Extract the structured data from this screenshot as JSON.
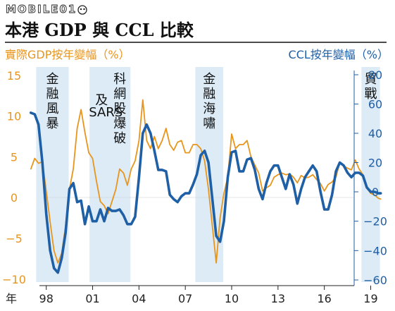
{
  "watermark": "MOBILE01",
  "chart_data": {
    "type": "line",
    "title": "本港 GDP 與 CCL 比較",
    "ylabel_left": "實際GDP按年變幅（%）",
    "ylabel_right": "CCL按年變幅（%）",
    "x_axis_label": "年",
    "x_ticks": [
      "98",
      "01",
      "04",
      "07",
      "10",
      "13",
      "16",
      "19"
    ],
    "x_tick_values": [
      1998,
      2001,
      2004,
      2007,
      2010,
      2013,
      2016,
      2019
    ],
    "xlim": [
      1996.6,
      2020.3
    ],
    "ylim_left": [
      -10,
      15
    ],
    "yticks_left": [
      "15",
      "10",
      "5",
      "0",
      "−5",
      "−10"
    ],
    "ytick_values_left": [
      15,
      10,
      5,
      0,
      -5,
      -10
    ],
    "ylim_right": [
      -60,
      80
    ],
    "yticks_right": [
      "80",
      "60",
      "40",
      "20",
      "0",
      "−20",
      "−40",
      "−60"
    ],
    "ytick_values_right": [
      80,
      60,
      40,
      20,
      0,
      -20,
      -40,
      -60
    ],
    "bands": [
      {
        "label": "金融風暴",
        "start": 1997.35,
        "end": 1999.45
      },
      {
        "label": "科網股爆破及SARS",
        "start": 2000.8,
        "end": 2003.45
      },
      {
        "label": "金融海嘯",
        "start": 2007.65,
        "end": 2009.45
      },
      {
        "label": "貿戰",
        "start": 2018.4,
        "end": 2019.6
      }
    ],
    "colors": {
      "gdp": "#E8951C",
      "ccl": "#1F5FA5",
      "band": "#DCEBF6"
    },
    "series": [
      {
        "key": "gdp",
        "axis": "left",
        "points": [
          [
            1997.0,
            3.5
          ],
          [
            1997.25,
            4.8
          ],
          [
            1997.5,
            4.2
          ],
          [
            1997.75,
            4.4
          ],
          [
            1998.0,
            0.8
          ],
          [
            1998.25,
            -3.0
          ],
          [
            1998.5,
            -6.5
          ],
          [
            1998.75,
            -8.0
          ],
          [
            1999.0,
            -6.8
          ],
          [
            1999.25,
            -3.5
          ],
          [
            1999.5,
            1.0
          ],
          [
            1999.75,
            3.5
          ],
          [
            2000.0,
            8.5
          ],
          [
            2000.25,
            10.8
          ],
          [
            2000.5,
            8.0
          ],
          [
            2000.75,
            5.5
          ],
          [
            2001.0,
            4.8
          ],
          [
            2001.25,
            2.0
          ],
          [
            2001.5,
            -0.5
          ],
          [
            2001.75,
            -1.0
          ],
          [
            2002.0,
            -2.0
          ],
          [
            2002.25,
            -0.5
          ],
          [
            2002.5,
            1.0
          ],
          [
            2002.75,
            3.5
          ],
          [
            2003.0,
            3.0
          ],
          [
            2003.25,
            1.5
          ],
          [
            2003.5,
            3.5
          ],
          [
            2003.75,
            4.5
          ],
          [
            2004.0,
            7.0
          ],
          [
            2004.25,
            12.0
          ],
          [
            2004.5,
            7.0
          ],
          [
            2004.75,
            6.0
          ],
          [
            2005.0,
            7.5
          ],
          [
            2005.25,
            6.0
          ],
          [
            2005.5,
            7.0
          ],
          [
            2005.75,
            8.5
          ],
          [
            2006.0,
            6.5
          ],
          [
            2006.25,
            5.8
          ],
          [
            2006.5,
            6.8
          ],
          [
            2006.75,
            7.0
          ],
          [
            2007.0,
            5.5
          ],
          [
            2007.25,
            5.5
          ],
          [
            2007.5,
            6.5
          ],
          [
            2007.75,
            6.5
          ],
          [
            2008.0,
            6.0
          ],
          [
            2008.25,
            4.5
          ],
          [
            2008.5,
            1.0
          ],
          [
            2008.75,
            -3.5
          ],
          [
            2009.0,
            -8.0
          ],
          [
            2009.25,
            -2.5
          ],
          [
            2009.5,
            0.5
          ],
          [
            2009.75,
            2.5
          ],
          [
            2010.0,
            7.8
          ],
          [
            2010.25,
            6.0
          ],
          [
            2010.5,
            6.5
          ],
          [
            2010.75,
            6.5
          ],
          [
            2011.0,
            7.0
          ],
          [
            2011.25,
            5.0
          ],
          [
            2011.5,
            4.0
          ],
          [
            2011.75,
            3.0
          ],
          [
            2012.0,
            0.8
          ],
          [
            2012.25,
            1.2
          ],
          [
            2012.5,
            1.5
          ],
          [
            2012.75,
            2.5
          ],
          [
            2013.0,
            2.8
          ],
          [
            2013.25,
            3.0
          ],
          [
            2013.5,
            2.8
          ],
          [
            2013.75,
            2.9
          ],
          [
            2014.0,
            2.5
          ],
          [
            2014.25,
            1.8
          ],
          [
            2014.5,
            2.7
          ],
          [
            2014.75,
            2.4
          ],
          [
            2015.0,
            2.5
          ],
          [
            2015.25,
            2.8
          ],
          [
            2015.5,
            2.2
          ],
          [
            2015.75,
            1.7
          ],
          [
            2016.0,
            0.8
          ],
          [
            2016.25,
            1.6
          ],
          [
            2016.5,
            1.9
          ],
          [
            2016.75,
            2.5
          ],
          [
            2017.0,
            4.3
          ],
          [
            2017.25,
            3.9
          ],
          [
            2017.5,
            3.6
          ],
          [
            2017.75,
            3.4
          ],
          [
            2018.0,
            4.6
          ],
          [
            2018.25,
            3.5
          ],
          [
            2018.5,
            2.8
          ],
          [
            2018.75,
            1.2
          ],
          [
            2019.0,
            0.5
          ],
          [
            2019.25,
            0.3
          ],
          [
            2019.5,
            -0.1
          ],
          [
            2019.65,
            -0.2
          ]
        ]
      },
      {
        "key": "ccl",
        "axis": "right",
        "points": [
          [
            1997.0,
            54
          ],
          [
            1997.25,
            53
          ],
          [
            1997.5,
            46
          ],
          [
            1997.75,
            20
          ],
          [
            1998.0,
            -15
          ],
          [
            1998.25,
            -40
          ],
          [
            1998.5,
            -52
          ],
          [
            1998.75,
            -55
          ],
          [
            1999.0,
            -45
          ],
          [
            1999.25,
            -28
          ],
          [
            1999.5,
            2
          ],
          [
            1999.75,
            6
          ],
          [
            2000.0,
            -7
          ],
          [
            2000.25,
            -6
          ],
          [
            2000.5,
            -22
          ],
          [
            2000.75,
            -10
          ],
          [
            2001.0,
            -20
          ],
          [
            2001.25,
            -20
          ],
          [
            2001.5,
            -12
          ],
          [
            2001.75,
            -20
          ],
          [
            2002.0,
            -11
          ],
          [
            2002.25,
            -13
          ],
          [
            2002.5,
            -13
          ],
          [
            2002.75,
            -12
          ],
          [
            2003.0,
            -16
          ],
          [
            2003.25,
            -22
          ],
          [
            2003.5,
            -22
          ],
          [
            2003.75,
            -17
          ],
          [
            2004.0,
            10
          ],
          [
            2004.25,
            40
          ],
          [
            2004.5,
            46
          ],
          [
            2004.75,
            40
          ],
          [
            2005.0,
            28
          ],
          [
            2005.25,
            15
          ],
          [
            2005.5,
            15
          ],
          [
            2005.75,
            14
          ],
          [
            2006.0,
            -2
          ],
          [
            2006.25,
            -5
          ],
          [
            2006.5,
            -7
          ],
          [
            2006.75,
            -3
          ],
          [
            2007.0,
            -1
          ],
          [
            2007.25,
            -1
          ],
          [
            2007.5,
            5
          ],
          [
            2007.75,
            12
          ],
          [
            2008.0,
            25
          ],
          [
            2008.25,
            28
          ],
          [
            2008.5,
            20
          ],
          [
            2008.75,
            -5
          ],
          [
            2009.0,
            -30
          ],
          [
            2009.25,
            -34
          ],
          [
            2009.5,
            -20
          ],
          [
            2009.75,
            10
          ],
          [
            2010.0,
            27
          ],
          [
            2010.25,
            28
          ],
          [
            2010.5,
            14
          ],
          [
            2010.75,
            14
          ],
          [
            2011.0,
            22
          ],
          [
            2011.25,
            23
          ],
          [
            2011.5,
            15
          ],
          [
            2011.75,
            2
          ],
          [
            2012.0,
            -5
          ],
          [
            2012.25,
            6
          ],
          [
            2012.5,
            14
          ],
          [
            2012.75,
            18
          ],
          [
            2013.0,
            18
          ],
          [
            2013.25,
            10
          ],
          [
            2013.5,
            2
          ],
          [
            2013.75,
            12
          ],
          [
            2014.0,
            5
          ],
          [
            2014.25,
            -8
          ],
          [
            2014.5,
            2
          ],
          [
            2014.75,
            10
          ],
          [
            2015.0,
            14
          ],
          [
            2015.25,
            18
          ],
          [
            2015.5,
            14
          ],
          [
            2015.75,
            0
          ],
          [
            2016.0,
            -12
          ],
          [
            2016.25,
            -12
          ],
          [
            2016.5,
            -2
          ],
          [
            2016.75,
            14
          ],
          [
            2017.0,
            20
          ],
          [
            2017.25,
            18
          ],
          [
            2017.5,
            13
          ],
          [
            2017.75,
            10
          ],
          [
            2018.0,
            13
          ],
          [
            2018.25,
            13
          ],
          [
            2018.5,
            11
          ],
          [
            2018.75,
            3
          ],
          [
            2019.0,
            0
          ],
          [
            2019.25,
            0
          ],
          [
            2019.5,
            -1
          ],
          [
            2019.65,
            -1
          ]
        ]
      }
    ]
  }
}
